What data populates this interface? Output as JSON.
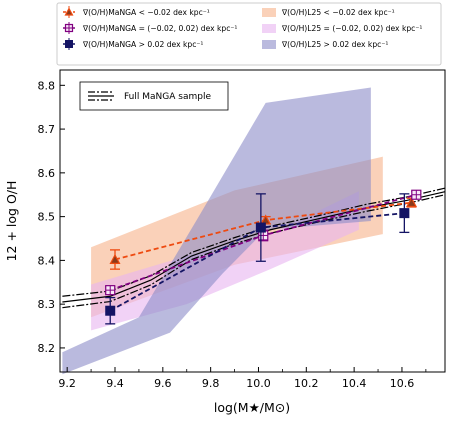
{
  "chart_data": {
    "type": "line",
    "xlabel": "log(M★/M⊙)",
    "ylabel": "12 + log O/H",
    "xlim": [
      9.17,
      10.78
    ],
    "ylim": [
      8.145,
      8.835
    ],
    "x_ticks": [
      9.2,
      9.4,
      9.6,
      9.8,
      10.0,
      10.2,
      10.4,
      10.6
    ],
    "y_ticks": [
      8.2,
      8.3,
      8.4,
      8.5,
      8.6,
      8.7,
      8.8
    ],
    "legend_placement": "top, above plot, two columns",
    "inset_legend": "Full MaNGA sample",
    "manga_series": [
      {
        "name": "∇(O/H)MaNGA < −0.02 dex kpc⁻¹",
        "color": "#ee4a10",
        "marker": "triangle",
        "x": [
          9.4,
          10.03,
          10.64
        ],
        "y": [
          8.402,
          8.492,
          8.532
        ],
        "yerr": [
          0.022,
          0.008,
          0.01
        ]
      },
      {
        "name": "∇(O/H)MaNGA = (−0.02, 0.02) dex kpc⁻¹",
        "color": "#800080",
        "marker": "cross-square",
        "x": [
          9.38,
          10.02,
          10.66
        ],
        "y": [
          8.332,
          8.457,
          8.55
        ],
        "yerr": [
          0.008,
          0.012,
          0.008
        ]
      },
      {
        "name": "∇(O/H)MaNGA > 0.02 dex kpc⁻¹",
        "color": "#141464",
        "marker": "square",
        "x": [
          9.38,
          10.01,
          10.61
        ],
        "y": [
          8.285,
          8.475,
          8.508
        ],
        "yerr": [
          0.03,
          0.077,
          0.044
        ]
      }
    ],
    "l25_bands": [
      {
        "name": "∇(O/H)L25 < −0.02 dex kpc⁻¹",
        "color": "#f7b28a",
        "upper": [
          [
            9.3,
            8.43
          ],
          [
            9.9,
            8.56
          ],
          [
            10.52,
            8.637
          ]
        ],
        "lower": [
          [
            9.3,
            8.27
          ],
          [
            9.9,
            8.39
          ],
          [
            10.52,
            8.46
          ]
        ]
      },
      {
        "name": "∇(O/H)L25 = (−0.02, 0.02) dex kpc⁻¹",
        "color": "#e8b4f0",
        "upper": [
          [
            9.3,
            8.345
          ],
          [
            9.7,
            8.41
          ],
          [
            10.05,
            8.46
          ],
          [
            10.42,
            8.558
          ]
        ],
        "lower": [
          [
            9.3,
            8.24
          ],
          [
            9.7,
            8.3
          ],
          [
            10.05,
            8.38
          ],
          [
            10.42,
            8.47
          ]
        ]
      },
      {
        "name": "∇(O/H)L25 > 0.02 dex kpc⁻¹",
        "color": "#8c8cc8",
        "upper": [
          [
            9.18,
            8.19
          ],
          [
            9.5,
            8.27
          ],
          [
            9.75,
            8.5
          ],
          [
            10.03,
            8.76
          ],
          [
            10.47,
            8.795
          ]
        ],
        "lower": [
          [
            9.18,
            8.14
          ],
          [
            9.63,
            8.235
          ],
          [
            9.85,
            8.37
          ],
          [
            10.03,
            8.47
          ],
          [
            10.47,
            8.49
          ]
        ]
      }
    ],
    "full_sample_lines": [
      {
        "style": "solid-black",
        "x": [
          9.18,
          9.38,
          9.55,
          9.72,
          9.9,
          10.05,
          10.25,
          10.45,
          10.62,
          10.78
        ],
        "y": [
          8.305,
          8.318,
          8.355,
          8.41,
          8.445,
          8.47,
          8.495,
          8.52,
          8.537,
          8.557
        ]
      },
      {
        "style": "dashdot-black",
        "x": [
          9.18,
          9.38,
          9.55,
          9.72,
          9.9,
          10.05,
          10.25,
          10.45,
          10.62,
          10.78
        ],
        "y": [
          8.318,
          8.33,
          8.365,
          8.418,
          8.452,
          8.478,
          8.502,
          8.528,
          8.545,
          8.565
        ]
      },
      {
        "style": "dashdot-black",
        "x": [
          9.18,
          9.38,
          9.55,
          9.72,
          9.9,
          10.05,
          10.25,
          10.45,
          10.62,
          10.78
        ],
        "y": [
          8.292,
          8.306,
          8.344,
          8.402,
          8.438,
          8.462,
          8.488,
          8.512,
          8.53,
          8.55
        ]
      }
    ]
  }
}
